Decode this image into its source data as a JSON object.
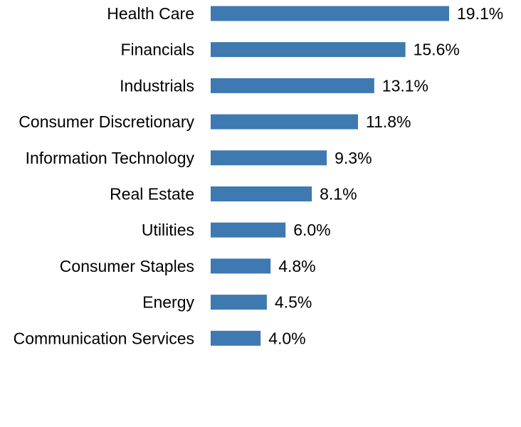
{
  "chart_data": {
    "type": "bar",
    "orientation": "horizontal",
    "title": "",
    "xlabel": "",
    "ylabel": "",
    "xlim": [
      0,
      19.1
    ],
    "grid": false,
    "legend": "none",
    "bar_color": "#3e79b1",
    "categories": [
      "Health Care",
      "Financials",
      "Industrials",
      "Consumer Discretionary",
      "Information Technology",
      "Real Estate",
      "Utilities",
      "Consumer Staples",
      "Energy",
      "Communication Services"
    ],
    "values": [
      19.1,
      15.6,
      13.1,
      11.8,
      9.3,
      8.1,
      6.0,
      4.8,
      4.5,
      4.0
    ],
    "value_labels": [
      "19.1%",
      "15.6%",
      "13.1%",
      "11.8%",
      "9.3%",
      "8.1%",
      "6.0%",
      "4.8%",
      "4.5%",
      "4.0%"
    ]
  }
}
